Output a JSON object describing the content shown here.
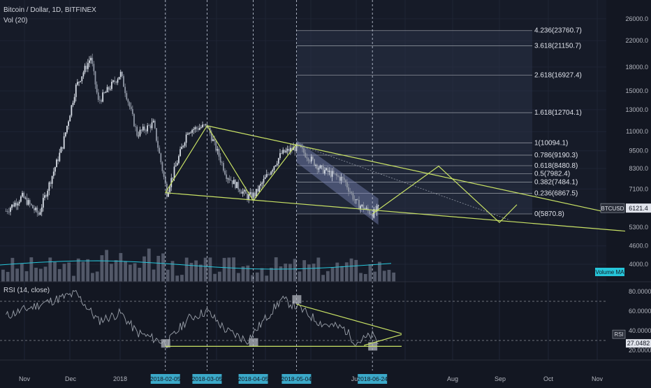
{
  "header": {
    "title": "Bitcoin / Dollar, 1D, BITFINEX",
    "volume": "Vol (20)",
    "rsi": "RSI (14, close)"
  },
  "colors": {
    "background": "#131722",
    "candle_up": "#d7dde6",
    "candle_down": "#8e95a3",
    "trendline": "#c9e265",
    "fib_line": "#8a8f99",
    "channel_fill": "#7a86b5",
    "rsi_line": "#9aa0aa",
    "accent": "#26c6da",
    "price_label_bg": "#2a2e39",
    "date_label_bg": "#3ba9c9"
  },
  "chart_data": [
    {
      "type": "line",
      "panel": "price",
      "title": "Bitcoin / Dollar, 1D, BITFINEX",
      "series": [
        {
          "name": "BTCUSD",
          "points": [
            [
              "2017-10-21",
              6000
            ],
            [
              "2017-11-01",
              6700
            ],
            [
              "2017-11-12",
              5850
            ],
            [
              "2017-11-28",
              9900
            ],
            [
              "2017-12-07",
              15500
            ],
            [
              "2017-12-17",
              19400
            ],
            [
              "2017-12-22",
              13800
            ],
            [
              "2018-01-06",
              17100
            ],
            [
              "2018-01-17",
              10800
            ],
            [
              "2018-01-28",
              11700
            ],
            [
              "2018-02-06",
              6900
            ],
            [
              "2018-02-20",
              11100
            ],
            [
              "2018-03-05",
              11500
            ],
            [
              "2018-03-18",
              7900
            ],
            [
              "2018-04-01",
              6700
            ],
            [
              "2018-04-06",
              6800
            ],
            [
              "2018-04-24",
              9300
            ],
            [
              "2018-05-05",
              9800
            ],
            [
              "2018-05-20",
              8300
            ],
            [
              "2018-06-05",
              7600
            ],
            [
              "2018-06-13",
              6400
            ],
            [
              "2018-06-24",
              5870
            ],
            [
              "2018-06-28",
              6121.4
            ]
          ]
        }
      ],
      "last_price_label": "BTCUSD",
      "last_price": "6121.4",
      "y_ticks": [
        "26000.0",
        "22000.0",
        "18000.0",
        "15000.0",
        "13000.0",
        "11000.0",
        "9500.0",
        "8300.0",
        "7100.0",
        "6121.4",
        "5300.0",
        "4600.0",
        "4000.0"
      ],
      "y_scale": "log",
      "fib_levels": [
        {
          "ratio": "4.236",
          "price": 23760.7,
          "label": "4.236(23760.7)"
        },
        {
          "ratio": "3.618",
          "price": 21150.7,
          "label": "3.618(21150.7)"
        },
        {
          "ratio": "2.618",
          "price": 16927.4,
          "label": "2.618(16927.4)"
        },
        {
          "ratio": "1.618",
          "price": 12704.1,
          "label": "1.618(12704.1)"
        },
        {
          "ratio": "1",
          "price": 10094.1,
          "label": "1(10094.1)"
        },
        {
          "ratio": "0.786",
          "price": 9190.3,
          "label": "0.786(9190.3)"
        },
        {
          "ratio": "0.618",
          "price": 8480.8,
          "label": "0.618(8480.8)"
        },
        {
          "ratio": "0.5",
          "price": 7982.4,
          "label": "0.5(7982.4)"
        },
        {
          "ratio": "0.382",
          "price": 7484.1,
          "label": "0.382(7484.1)"
        },
        {
          "ratio": "0.236",
          "price": 6867.5,
          "label": "0.236(6867.5)"
        },
        {
          "ratio": "0",
          "price": 5870.8,
          "label": "0(5870.8)"
        }
      ],
      "grid": true
    },
    {
      "type": "bar",
      "panel": "volume",
      "title": "Vol (20)",
      "legend": [
        "Volume MA"
      ],
      "bar_count": 84
    },
    {
      "type": "line",
      "panel": "rsi",
      "title": "RSI (14, close)",
      "series": [
        {
          "name": "RSI",
          "points": [
            [
              "2017-10-21",
              55
            ],
            [
              "2017-11-15",
              68
            ],
            [
              "2017-12-07",
              78
            ],
            [
              "2017-12-22",
              50
            ],
            [
              "2018-01-06",
              58
            ],
            [
              "2018-01-17",
              38
            ],
            [
              "2018-02-06",
              27
            ],
            [
              "2018-02-20",
              52
            ],
            [
              "2018-03-05",
              60
            ],
            [
              "2018-03-18",
              40
            ],
            [
              "2018-04-01",
              30
            ],
            [
              "2018-04-24",
              72
            ],
            [
              "2018-05-05",
              64
            ],
            [
              "2018-05-20",
              48
            ],
            [
              "2018-06-05",
              42
            ],
            [
              "2018-06-13",
              28
            ],
            [
              "2018-06-24",
              35
            ],
            [
              "2018-06-28",
              27.0482
            ]
          ]
        }
      ],
      "y_ticks": [
        "80.0000",
        "60.0000",
        "40.0000",
        "20.0000"
      ],
      "last_label": "RSI",
      "last_value": "27.0482",
      "ylim": [
        15,
        85
      ]
    }
  ],
  "x_axis": {
    "labels": [
      "Nov",
      "Dec",
      "2018",
      "Jun",
      "Aug",
      "Sep",
      "Oct",
      "Nov"
    ],
    "highlighted_dates": [
      "2018-02-05",
      "2018-03-05",
      "2018-04-05",
      "2018-05-04",
      "2018-06-24"
    ]
  }
}
